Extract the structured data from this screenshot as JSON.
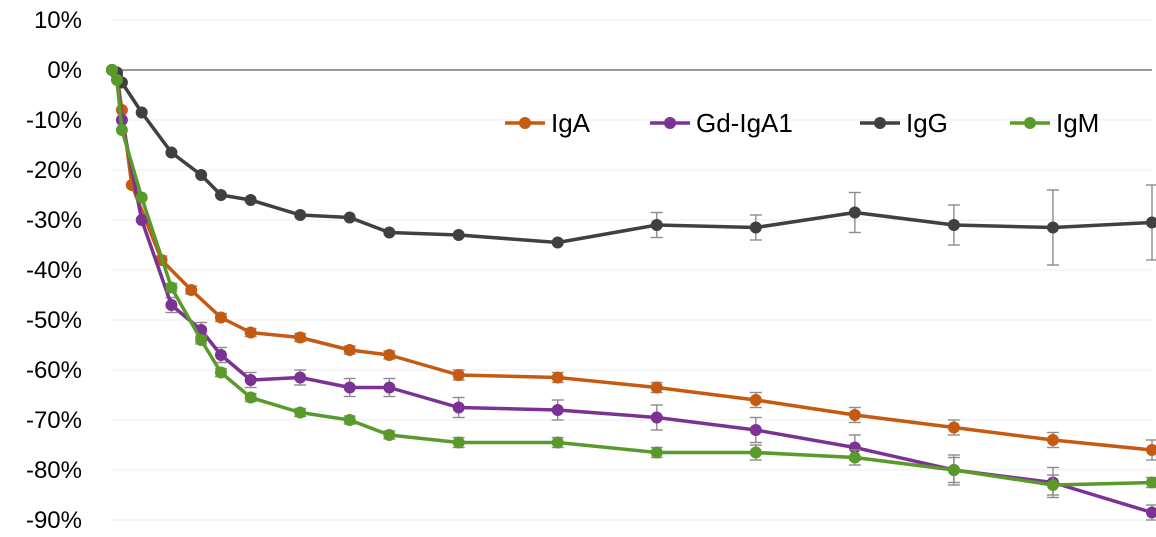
{
  "chart_data": {
    "type": "line",
    "title": "",
    "xlabel": "",
    "ylabel": "",
    "ylim": [
      -90,
      10
    ],
    "y_tick_labels": [
      "10%",
      "0%",
      "-10%",
      "-20%",
      "-30%",
      "-40%",
      "-50%",
      "-60%",
      "-70%",
      "-80%",
      "-90%"
    ],
    "y_tick_values": [
      10,
      0,
      -10,
      -20,
      -30,
      -40,
      -50,
      -60,
      -70,
      -80,
      -90
    ],
    "x_axis_labels": "none",
    "x": [
      0,
      0.5,
      1,
      2,
      3,
      5,
      6,
      8,
      9,
      11,
      14,
      19,
      24,
      28,
      35,
      45,
      55,
      65,
      75,
      85,
      95,
      105
    ],
    "legend_position": "top-right",
    "series": [
      {
        "name": "IgA",
        "color": "#c55a11",
        "points": [
          [
            0,
            0
          ],
          [
            0.5,
            -1
          ],
          [
            1,
            -8
          ],
          [
            2,
            -23
          ],
          [
            5,
            -38
          ],
          [
            8,
            -44
          ],
          [
            11,
            -49.5
          ],
          [
            14,
            -52.5
          ],
          [
            19,
            -53.5
          ],
          [
            24,
            -56
          ],
          [
            28,
            -57
          ],
          [
            35,
            -61
          ],
          [
            45,
            -61.5
          ],
          [
            55,
            -63.5
          ],
          [
            65,
            -66
          ],
          [
            75,
            -69
          ],
          [
            85,
            -71.5
          ],
          [
            95,
            -74
          ],
          [
            105,
            -76
          ]
        ],
        "errors": [
          0,
          0,
          0.5,
          0.5,
          0.8,
          0.8,
          0.8,
          0.8,
          0.8,
          0.8,
          0.8,
          1.0,
          1.0,
          1.0,
          1.5,
          1.5,
          1.5,
          1.5,
          2.0
        ]
      },
      {
        "name": "Gd-IgA1",
        "color": "#7b3294",
        "points": [
          [
            0,
            0
          ],
          [
            0.5,
            -1
          ],
          [
            1,
            -10
          ],
          [
            3,
            -30
          ],
          [
            6,
            -47
          ],
          [
            9,
            -52
          ],
          [
            11,
            -57
          ],
          [
            14,
            -62
          ],
          [
            19,
            -61.5
          ],
          [
            24,
            -63.5
          ],
          [
            28,
            -63.5
          ],
          [
            35,
            -67.5
          ],
          [
            45,
            -68
          ],
          [
            55,
            -69.5
          ],
          [
            65,
            -72
          ],
          [
            75,
            -75.5
          ],
          [
            85,
            -80
          ],
          [
            95,
            -82.5
          ],
          [
            105,
            -88.5
          ]
        ],
        "errors": [
          0,
          0,
          0.5,
          0.5,
          1.5,
          1.5,
          1.5,
          1.5,
          1.5,
          1.8,
          1.8,
          2.0,
          2.0,
          2.5,
          2.5,
          2.5,
          3.0,
          3.0,
          1.5
        ]
      },
      {
        "name": "IgG",
        "color": "#404040",
        "points": [
          [
            0,
            0
          ],
          [
            0.5,
            -0.5
          ],
          [
            1,
            -2.5
          ],
          [
            3,
            -8.5
          ],
          [
            6,
            -16.5
          ],
          [
            9,
            -21
          ],
          [
            11,
            -25
          ],
          [
            14,
            -26
          ],
          [
            19,
            -29
          ],
          [
            24,
            -29.5
          ],
          [
            28,
            -32.5
          ],
          [
            35,
            -33
          ],
          [
            45,
            -34.5
          ],
          [
            55,
            -31
          ],
          [
            65,
            -31.5
          ],
          [
            75,
            -28.5
          ],
          [
            85,
            -31
          ],
          [
            95,
            -31.5
          ],
          [
            105,
            -30.5
          ]
        ],
        "errors": [
          0,
          0,
          0.5,
          0.5,
          0.5,
          0.5,
          0.5,
          0.5,
          0.5,
          0.5,
          0.5,
          0.5,
          0.5,
          2.5,
          2.5,
          4.0,
          4.0,
          7.5,
          7.5
        ]
      },
      {
        "name": "IgM",
        "color": "#5a9a2b",
        "points": [
          [
            0,
            0
          ],
          [
            0.5,
            -2
          ],
          [
            1,
            -12
          ],
          [
            3,
            -25.5
          ],
          [
            6,
            -43.5
          ],
          [
            9,
            -54
          ],
          [
            11,
            -60.5
          ],
          [
            14,
            -65.5
          ],
          [
            19,
            -68.5
          ],
          [
            24,
            -70
          ],
          [
            28,
            -73
          ],
          [
            35,
            -74.5
          ],
          [
            45,
            -74.5
          ],
          [
            55,
            -76.5
          ],
          [
            65,
            -76.5
          ],
          [
            75,
            -77.5
          ],
          [
            85,
            -80
          ],
          [
            95,
            -83
          ],
          [
            105,
            -82.5
          ]
        ],
        "errors": [
          0,
          0,
          0.5,
          0.5,
          0.8,
          0.8,
          0.8,
          0.8,
          0.8,
          0.8,
          0.8,
          1.0,
          1.0,
          1.0,
          1.5,
          1.5,
          2.5,
          2.0,
          1.0
        ]
      }
    ]
  }
}
